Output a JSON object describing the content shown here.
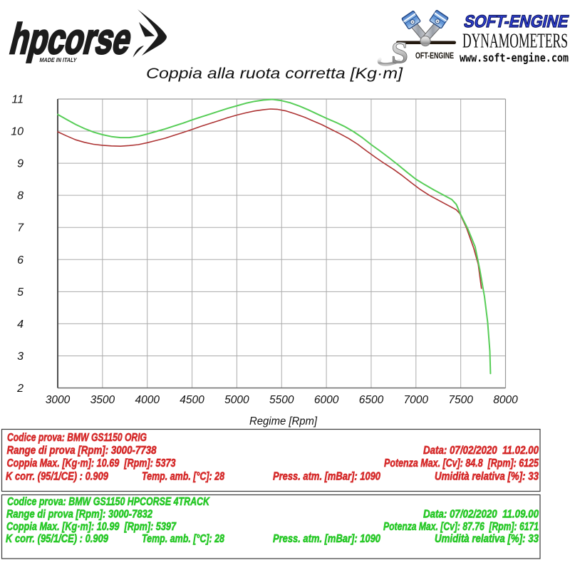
{
  "branding": {
    "hpcorse": {
      "logo_text": "hpcorse",
      "tagline": "MADE IN ITALY"
    },
    "softengine": {
      "emblem_s": "S",
      "emblem_text": "OFT-ENGINE",
      "name": "SOFT-ENGINE",
      "subtitle": "DYNAMOMETERS",
      "website": "www.soft-engine.com"
    }
  },
  "chart_data": {
    "type": "line",
    "title": "Coppia alla ruota corretta [Kg·m]",
    "xlabel": "Regime [Rpm]",
    "ylabel": "",
    "xlim": [
      3000,
      8000
    ],
    "ylim": [
      2,
      11
    ],
    "x_ticks": [
      3000,
      3500,
      4000,
      4500,
      5000,
      5500,
      6000,
      6500,
      7000,
      7500,
      8000
    ],
    "y_ticks": [
      2,
      3,
      4,
      5,
      6,
      7,
      8,
      9,
      10,
      11
    ],
    "grid": true,
    "legend_position": "none",
    "grid_color": "#ababab",
    "series": [
      {
        "name": "BMW GS1150 ORIG",
        "color": "#ad3434",
        "width": 1.6,
        "points": [
          [
            3000,
            9.98
          ],
          [
            3100,
            9.85
          ],
          [
            3200,
            9.73
          ],
          [
            3300,
            9.65
          ],
          [
            3400,
            9.59
          ],
          [
            3500,
            9.56
          ],
          [
            3600,
            9.54
          ],
          [
            3700,
            9.53
          ],
          [
            3800,
            9.55
          ],
          [
            3900,
            9.58
          ],
          [
            4000,
            9.64
          ],
          [
            4100,
            9.71
          ],
          [
            4200,
            9.78
          ],
          [
            4300,
            9.87
          ],
          [
            4400,
            9.96
          ],
          [
            4500,
            10.05
          ],
          [
            4600,
            10.15
          ],
          [
            4700,
            10.24
          ],
          [
            4800,
            10.33
          ],
          [
            4900,
            10.42
          ],
          [
            5000,
            10.5
          ],
          [
            5100,
            10.57
          ],
          [
            5200,
            10.63
          ],
          [
            5300,
            10.67
          ],
          [
            5373,
            10.69
          ],
          [
            5450,
            10.68
          ],
          [
            5550,
            10.63
          ],
          [
            5650,
            10.54
          ],
          [
            5750,
            10.44
          ],
          [
            5850,
            10.32
          ],
          [
            5950,
            10.2
          ],
          [
            6050,
            10.06
          ],
          [
            6150,
            9.92
          ],
          [
            6250,
            9.77
          ],
          [
            6350,
            9.59
          ],
          [
            6450,
            9.38
          ],
          [
            6550,
            9.18
          ],
          [
            6650,
            8.99
          ],
          [
            6750,
            8.81
          ],
          [
            6850,
            8.61
          ],
          [
            6950,
            8.39
          ],
          [
            7050,
            8.18
          ],
          [
            7150,
            8.0
          ],
          [
            7250,
            7.85
          ],
          [
            7350,
            7.7
          ],
          [
            7450,
            7.55
          ],
          [
            7490,
            7.43
          ],
          [
            7565,
            6.98
          ],
          [
            7645,
            6.35
          ],
          [
            7695,
            5.85
          ],
          [
            7731,
            5.1
          ]
        ]
      },
      {
        "name": "BMW GS1150 HPCORSE 4TRACK",
        "color": "#57cd57",
        "width": 2,
        "points": [
          [
            3000,
            10.52
          ],
          [
            3100,
            10.36
          ],
          [
            3200,
            10.21
          ],
          [
            3300,
            10.08
          ],
          [
            3400,
            9.97
          ],
          [
            3500,
            9.89
          ],
          [
            3600,
            9.83
          ],
          [
            3700,
            9.8
          ],
          [
            3800,
            9.8
          ],
          [
            3900,
            9.84
          ],
          [
            4000,
            9.91
          ],
          [
            4100,
            9.99
          ],
          [
            4200,
            10.07
          ],
          [
            4300,
            10.16
          ],
          [
            4400,
            10.25
          ],
          [
            4500,
            10.35
          ],
          [
            4600,
            10.44
          ],
          [
            4700,
            10.53
          ],
          [
            4800,
            10.62
          ],
          [
            4900,
            10.71
          ],
          [
            5000,
            10.79
          ],
          [
            5100,
            10.87
          ],
          [
            5200,
            10.93
          ],
          [
            5300,
            10.97
          ],
          [
            5397,
            10.99
          ],
          [
            5500,
            10.95
          ],
          [
            5600,
            10.88
          ],
          [
            5700,
            10.78
          ],
          [
            5800,
            10.66
          ],
          [
            5900,
            10.53
          ],
          [
            6000,
            10.4
          ],
          [
            6100,
            10.28
          ],
          [
            6200,
            10.15
          ],
          [
            6300,
            9.99
          ],
          [
            6400,
            9.8
          ],
          [
            6500,
            9.58
          ],
          [
            6600,
            9.38
          ],
          [
            6700,
            9.17
          ],
          [
            6800,
            8.95
          ],
          [
            6900,
            8.72
          ],
          [
            7000,
            8.5
          ],
          [
            7100,
            8.33
          ],
          [
            7200,
            8.17
          ],
          [
            7300,
            8.02
          ],
          [
            7400,
            7.87
          ],
          [
            7450,
            7.72
          ],
          [
            7500,
            7.4
          ],
          [
            7580,
            6.95
          ],
          [
            7660,
            6.4
          ],
          [
            7712,
            5.7
          ],
          [
            7765,
            4.84
          ],
          [
            7800,
            4.05
          ],
          [
            7825,
            3.15
          ],
          [
            7832,
            2.45
          ]
        ]
      }
    ]
  },
  "results": [
    {
      "accent": "#d52b2b",
      "codice": "Codice prova: BMW GS1150 ORIG",
      "range": "Range di prova [Rpm]: 3000-7738",
      "data": "Data: 07/02/2020  11.02.00",
      "coppia": "Coppia Max. [Kg·m]: 10.69  [Rpm]: 5373",
      "potenza": "Potenza Max. [Cv]: 84.8  [Rpm]: 6125",
      "kcorr": "K corr. (95/1/CE) : 0.909",
      "temp": "Temp. amb. [°C]: 28",
      "press": "Press. atm. [mBar]: 1090",
      "umidita": "Umidità relativa [%]: 33"
    },
    {
      "accent": "#28c828",
      "codice": "Codice prova: BMW GS1150 HPCORSE 4TRACK",
      "range": "Range di prova [Rpm]: 3000-7832",
      "data": "Data: 07/02/2020  11.09.00",
      "coppia": "Coppia Max. [Kg·m]: 10.99  [Rpm]: 5397",
      "potenza": "Potenza Max. [Cv]: 87.76  [Rpm]: 6171",
      "kcorr": "K corr. (95/1/CE) : 0.909",
      "temp": "Temp. amb. [°C]: 28",
      "press": "Press. atm. [mBar]: 1090",
      "umidita": "Umidità relativa [%]: 33"
    }
  ]
}
